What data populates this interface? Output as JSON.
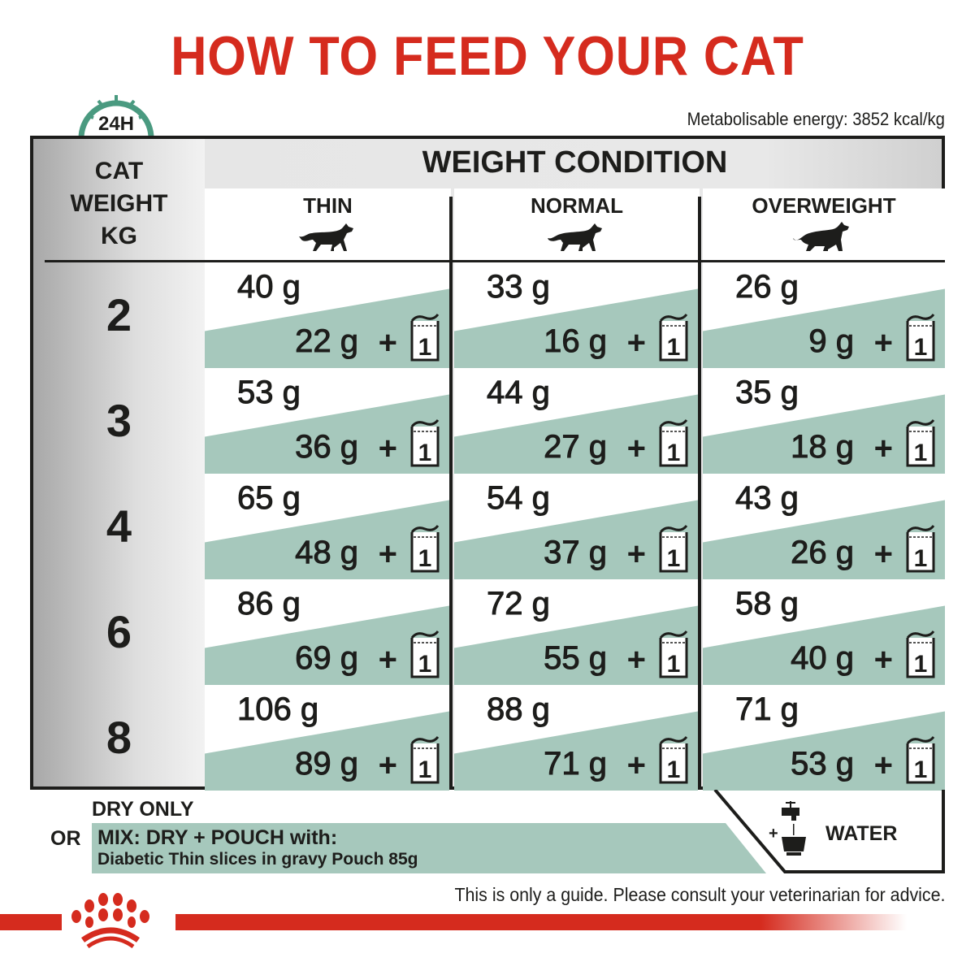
{
  "title": "HOW TO FEED YOUR CAT",
  "clock_label": "24H",
  "energy": "Metabolisable energy: 3852 kcal/kg",
  "table": {
    "row_header": [
      "CAT",
      "WEIGHT",
      "KG"
    ],
    "group_header": "WEIGHT CONDITION",
    "columns": [
      "THIN",
      "NORMAL",
      "OVERWEIGHT"
    ],
    "pouch_count": "1",
    "rows": [
      {
        "kg": "2",
        "cells": [
          {
            "dry": "40 g",
            "mix": "22 g"
          },
          {
            "dry": "33 g",
            "mix": "16 g"
          },
          {
            "dry": "26 g",
            "mix": "9 g"
          }
        ]
      },
      {
        "kg": "3",
        "cells": [
          {
            "dry": "53 g",
            "mix": "36 g"
          },
          {
            "dry": "44 g",
            "mix": "27 g"
          },
          {
            "dry": "35 g",
            "mix": "18 g"
          }
        ]
      },
      {
        "kg": "4",
        "cells": [
          {
            "dry": "65 g",
            "mix": "48 g"
          },
          {
            "dry": "54 g",
            "mix": "37 g"
          },
          {
            "dry": "43 g",
            "mix": "26 g"
          }
        ]
      },
      {
        "kg": "6",
        "cells": [
          {
            "dry": "86 g",
            "mix": "69 g"
          },
          {
            "dry": "72 g",
            "mix": "55 g"
          },
          {
            "dry": "58 g",
            "mix": "40 g"
          }
        ]
      },
      {
        "kg": "8",
        "cells": [
          {
            "dry": "106 g",
            "mix": "89 g"
          },
          {
            "dry": "88 g",
            "mix": "71 g"
          },
          {
            "dry": "71 g",
            "mix": "53 g"
          }
        ]
      }
    ]
  },
  "legend": {
    "dry_only": "DRY ONLY",
    "or": "OR",
    "mix_line1": "MIX: DRY + POUCH with:",
    "mix_line2": "Diabetic Thin slices in gravy Pouch 85g",
    "water_plus": "+",
    "water": "WATER"
  },
  "footer": "This is only a guide. Please consult your veterinarian for advice.",
  "colors": {
    "brand_red": "#d52b1e",
    "teal": "#a6c8bc",
    "clock_green": "#4a9a80"
  }
}
